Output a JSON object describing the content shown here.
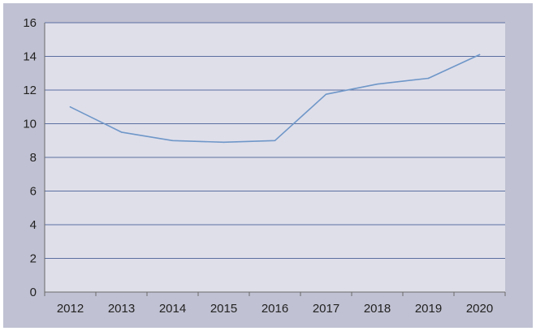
{
  "chart_data": {
    "type": "line",
    "categories": [
      "2012",
      "2013",
      "2014",
      "2015",
      "2016",
      "2017",
      "2018",
      "2019",
      "2020"
    ],
    "series": [
      {
        "values": [
          11.0,
          9.5,
          9.0,
          8.9,
          9.0,
          11.75,
          12.35,
          12.7,
          14.1
        ]
      }
    ],
    "ylim": [
      0,
      16
    ],
    "yticks": [
      "0",
      "2",
      "4",
      "6",
      "8",
      "10",
      "12",
      "14",
      "16"
    ],
    "grid": true,
    "legend": "none",
    "colors": {
      "frame_background": "#c0c1d2",
      "plot_background": "#dfdfea",
      "gridline": "#5b6fa0",
      "line": "#6f97c8",
      "axis": "#6a6a6a",
      "text": "#222222"
    }
  }
}
